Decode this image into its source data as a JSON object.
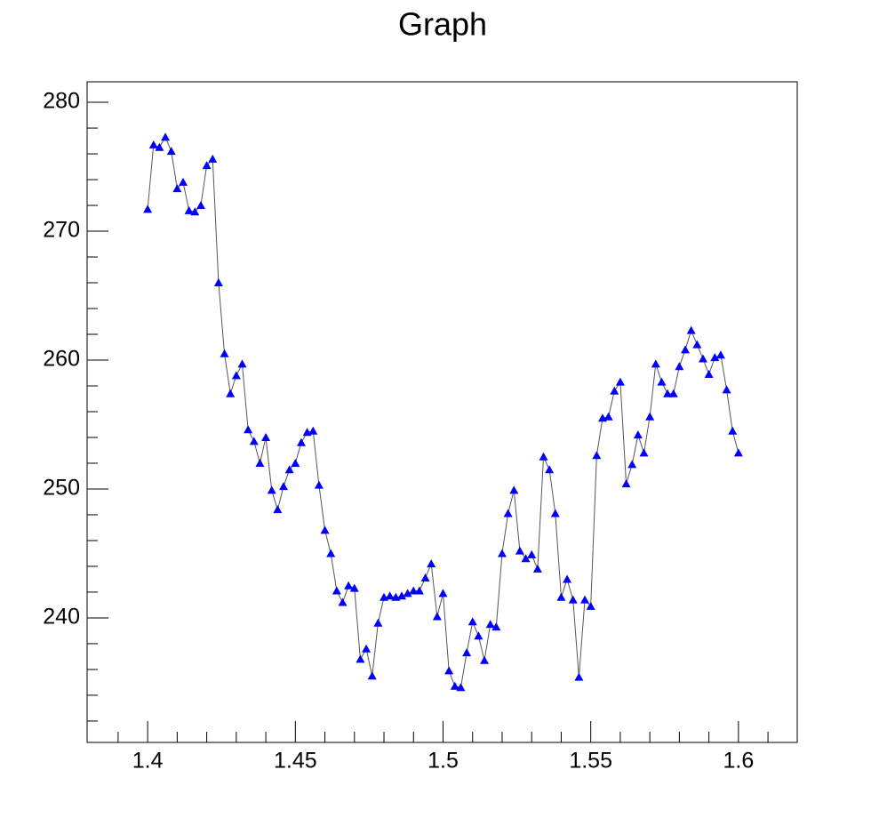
{
  "chart_data": {
    "type": "line",
    "title": "Graph",
    "x": [
      1.4,
      1.402,
      1.404,
      1.406,
      1.408,
      1.41,
      1.412,
      1.414,
      1.416,
      1.418,
      1.42,
      1.422,
      1.424,
      1.426,
      1.428,
      1.43,
      1.432,
      1.434,
      1.436,
      1.438,
      1.44,
      1.442,
      1.444,
      1.446,
      1.448,
      1.45,
      1.452,
      1.454,
      1.456,
      1.458,
      1.46,
      1.462,
      1.464,
      1.466,
      1.468,
      1.47,
      1.472,
      1.474,
      1.476,
      1.478,
      1.48,
      1.482,
      1.484,
      1.486,
      1.488,
      1.49,
      1.492,
      1.494,
      1.496,
      1.498,
      1.5,
      1.502,
      1.504,
      1.506,
      1.508,
      1.51,
      1.512,
      1.514,
      1.516,
      1.518,
      1.52,
      1.522,
      1.524,
      1.526,
      1.528,
      1.53,
      1.532,
      1.534,
      1.536,
      1.538,
      1.54,
      1.542,
      1.544,
      1.546,
      1.548,
      1.55,
      1.552,
      1.554,
      1.556,
      1.558,
      1.56,
      1.562,
      1.564,
      1.566,
      1.568,
      1.57,
      1.572,
      1.574,
      1.576,
      1.578,
      1.58,
      1.582,
      1.584,
      1.586,
      1.588,
      1.59,
      1.592,
      1.594,
      1.596,
      1.598,
      1.6
    ],
    "series": [
      {
        "color": "#0000ff",
        "line_color": "#555555",
        "marker": "triangle",
        "values": [
          271.7,
          276.7,
          276.5,
          277.3,
          276.2,
          273.3,
          273.8,
          271.6,
          271.5,
          272.0,
          275.1,
          275.6,
          266.0,
          260.5,
          257.4,
          258.8,
          259.7,
          254.6,
          253.7,
          252.0,
          254.0,
          249.9,
          248.4,
          250.2,
          251.5,
          252.0,
          253.6,
          254.4,
          254.5,
          250.3,
          246.8,
          245.0,
          242.1,
          241.2,
          242.5,
          242.3,
          236.8,
          237.6,
          235.5,
          239.6,
          241.6,
          241.7,
          241.6,
          241.7,
          241.9,
          242.1,
          242.1,
          243.1,
          244.2,
          240.1,
          241.9,
          235.9,
          234.7,
          234.6,
          237.3,
          239.7,
          238.6,
          236.7,
          239.5,
          239.3,
          245.0,
          248.1,
          249.9,
          245.2,
          244.6,
          244.9,
          243.8,
          252.5,
          251.5,
          248.1,
          241.6,
          243.0,
          241.4,
          235.4,
          241.4,
          240.9,
          252.6,
          255.5,
          255.6,
          257.6,
          258.3,
          250.4,
          251.9,
          254.2,
          252.8,
          255.6,
          259.7,
          258.3,
          257.4,
          257.4,
          259.5,
          260.8,
          262.3,
          261.2,
          260.1,
          258.9,
          260.2,
          260.4,
          257.7,
          254.5,
          252.8
        ]
      }
    ],
    "xlim": [
      1.3795,
      1.6199
    ],
    "ylim": [
      230.34,
      281.59
    ],
    "xticks": [
      {
        "value": 1.4,
        "label": "1.4"
      },
      1.45,
      1.5,
      1.55,
      1.6
    ],
    "yticks": [
      240,
      250,
      260,
      270,
      280
    ],
    "xminorticks": [
      1.39,
      1.41,
      1.42,
      1.43,
      1.44,
      1.46,
      1.47,
      1.48,
      1.49,
      1.51,
      1.52,
      1.53,
      1.54,
      1.56,
      1.57,
      1.58,
      1.59,
      1.61
    ],
    "yminorticks": [
      232,
      234,
      236,
      238,
      242,
      244,
      246,
      248,
      252,
      254,
      256,
      258,
      262,
      264,
      266,
      268,
      272,
      274,
      276,
      278
    ]
  }
}
